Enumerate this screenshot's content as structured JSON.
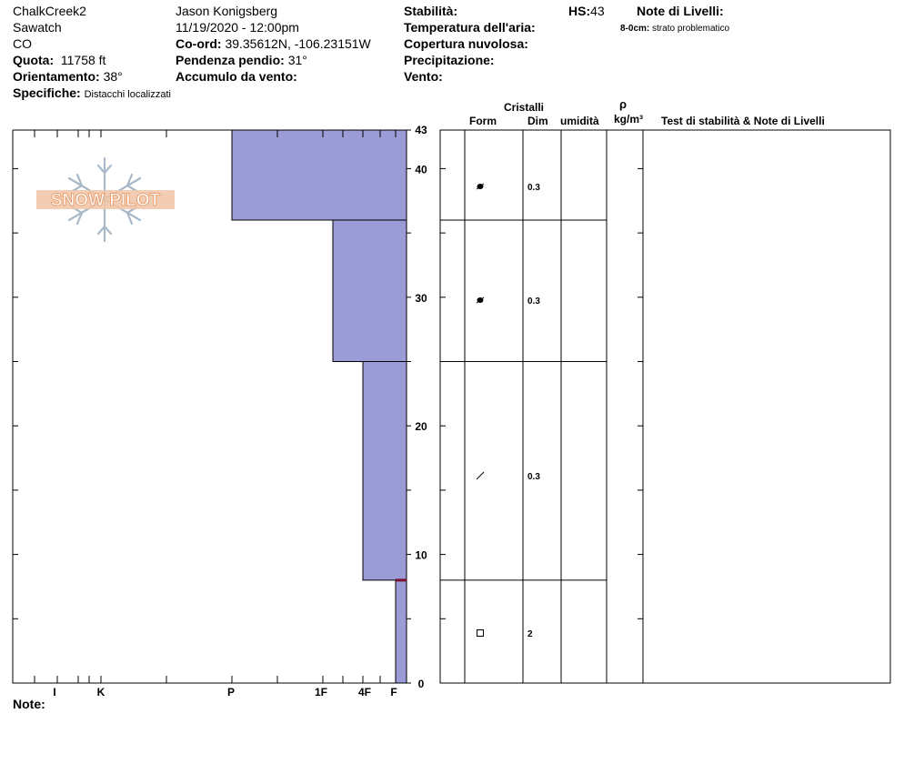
{
  "header": {
    "location": "ChalkCreek2",
    "range": "Sawatch",
    "state": "CO",
    "quota_label": "Quota:",
    "quota_value": "11758 ft",
    "orient_label": "Orientamento:",
    "orient_value": "38°",
    "spec_label": "Specifiche:",
    "spec_value": "Distacchi localizzati",
    "observer": "Jason Konigsberg",
    "datetime": "11/19/2020 - 12:00pm",
    "coord_label": "Co-ord:",
    "coord_value": "39.35612N, -106.23151W",
    "slope_label": "Pendenza pendio:",
    "slope_value": "31°",
    "wind_load_label": "Accumulo da vento:",
    "stability_label": "Stabilità:",
    "air_temp_label": "Temperatura dell'aria:",
    "cloud_label": "Copertura nuvolosa:",
    "precip_label": "Precipitazione:",
    "wind_label": "Vento:",
    "hs_label": "HS:",
    "hs_value": "43",
    "layer_notes_label": "Note di Livelli:",
    "layer_note_range": "8-0cm:",
    "layer_note_text": "strato problematico"
  },
  "logo_text": "SNOW PILOT",
  "notes_label": "Note:",
  "columns": {
    "cristalli": "Cristalli",
    "form": "Form",
    "dim": "Dim",
    "umidita": "umidità",
    "rho": "ρ",
    "density_unit": "kg/m³",
    "stability_notes": "Test di stabilità & Note di Livelli"
  },
  "colors": {
    "hardness_fill": "#9b9bd7",
    "problem_line": "#7a1030",
    "logo_orange": "#e8a070",
    "logo_blue": "#a9b9c8"
  },
  "chart_data": {
    "type": "bar",
    "orientation": "horizontal",
    "y_axis": {
      "label": "",
      "range": [
        0,
        43
      ],
      "ticks": [
        0,
        10,
        20,
        30,
        40,
        43
      ]
    },
    "x_axis": {
      "tick_labels": [
        "I",
        "K",
        "P",
        "1F",
        "4F",
        "F"
      ]
    },
    "layers": [
      {
        "top": 43,
        "bottom": 36,
        "hardness": "P",
        "form": "precipitation-particles-icon",
        "size": "0.3"
      },
      {
        "top": 36,
        "bottom": 25,
        "hardness": "1F+",
        "form": "precipitation-particles-icon",
        "size": "0.3"
      },
      {
        "top": 25,
        "bottom": 8,
        "hardness": "4F",
        "form": "decomposing-fragments-icon",
        "size": "0.3"
      },
      {
        "top": 8,
        "bottom": 0,
        "hardness": "F+",
        "form": "faceted-crystals-icon",
        "size": "2"
      }
    ],
    "problem_layer_depth": 8
  }
}
